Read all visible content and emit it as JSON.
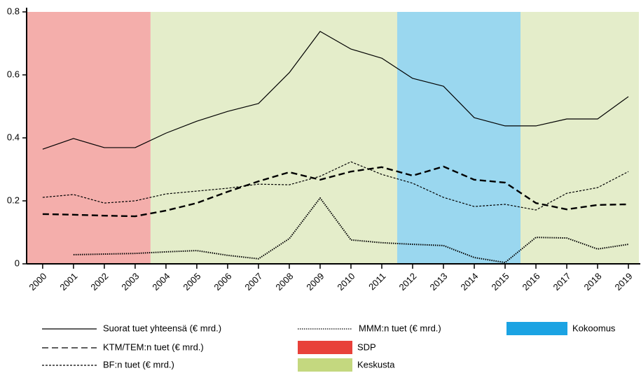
{
  "chart_data": {
    "type": "line",
    "x": [
      2000,
      2001,
      2002,
      2003,
      2004,
      2005,
      2006,
      2007,
      2008,
      2009,
      2010,
      2011,
      2012,
      2013,
      2014,
      2015,
      2016,
      2017,
      2018,
      2019
    ],
    "xlim": [
      1999.48,
      2019.34
    ],
    "ylim": [
      0,
      0.8
    ],
    "yticks": [
      0,
      0.2,
      0.4,
      0.6,
      0.8
    ],
    "grid": false,
    "series": [
      {
        "name": "Suorat tuet yhteensä (€ mrd.)",
        "color": "#000000",
        "dash": "none",
        "width": 1.2,
        "values": [
          0.364,
          0.398,
          0.369,
          0.369,
          0.415,
          0.453,
          0.484,
          0.509,
          0.607,
          0.738,
          0.682,
          0.653,
          0.589,
          0.564,
          0.464,
          0.438,
          0.438,
          0.46,
          0.46,
          0.531
        ]
      },
      {
        "name": "KTM/TEM:n tuet (€ mrd.)",
        "color": "#000000",
        "dash": "9 5",
        "width": 2.4,
        "values": [
          0.158,
          0.156,
          0.153,
          0.151,
          0.169,
          0.193,
          0.229,
          0.262,
          0.291,
          0.267,
          0.293,
          0.307,
          0.28,
          0.309,
          0.267,
          0.258,
          0.193,
          0.173,
          0.187,
          0.189
        ]
      },
      {
        "name": "BF:n tuet (€ mrd.)",
        "color": "#000000",
        "dash": "3 2",
        "width": 1.2,
        "values": [
          0.211,
          0.22,
          0.193,
          0.2,
          0.222,
          0.231,
          0.24,
          0.253,
          0.251,
          0.278,
          0.324,
          0.284,
          0.256,
          0.211,
          0.182,
          0.189,
          0.171,
          0.224,
          0.242,
          0.293
        ]
      },
      {
        "name": "MMM:n tuet (€ mrd.)",
        "color": "#000000",
        "dash": "1.5 1.5",
        "width": 2,
        "values": [
          null,
          0.029,
          0.031,
          0.033,
          0.038,
          0.042,
          0.027,
          0.016,
          0.08,
          0.209,
          0.076,
          0.067,
          0.062,
          0.058,
          0.02,
          0.004,
          0.084,
          0.082,
          0.047,
          0.062
        ]
      }
    ],
    "parties": [
      {
        "name": "SDP",
        "color": "#e8413a",
        "band_color": "#f4aeab",
        "spans": [
          [
            1999.48,
            2003.5
          ]
        ]
      },
      {
        "name": "Keskusta",
        "color": "#c4d87f",
        "band_color": "#e4edca",
        "spans": [
          [
            2003.5,
            2011.5
          ],
          [
            2015.5,
            2019.34
          ]
        ]
      },
      {
        "name": "Kokoomus",
        "color": "#1ba3e3",
        "band_color": "#9ad7ef",
        "spans": [
          [
            2011.5,
            2015.5
          ]
        ]
      }
    ]
  }
}
